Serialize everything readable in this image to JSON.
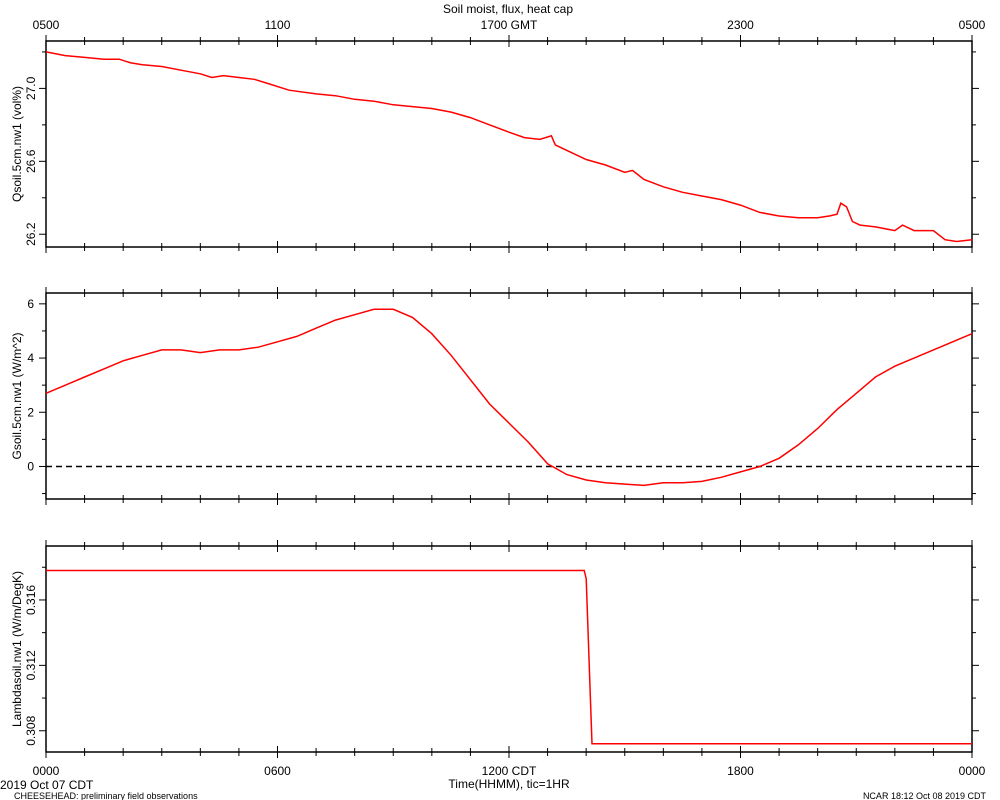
{
  "chart_data": {
    "title": "Soil moist, flux, heat cap",
    "top_axis_ticks": [
      "0500",
      "1100",
      "1700 GMT",
      "2300",
      "0500"
    ],
    "bottom_axis_ticks": [
      "0000",
      "0600",
      "1200 CDT",
      "1800",
      "0000"
    ],
    "xlabel": "Time(HHMM), tic=1HR",
    "xlim_hours": [
      0,
      24
    ],
    "start_date": "2019 Oct 07 CDT",
    "footer_left": "CHEESEHEAD: preliminary field observations",
    "footer_right": "NCAR 18:12 Oct 08 2019 CDT",
    "line_color": "#ff0000",
    "panels": [
      {
        "type": "line",
        "ylabel": "Qsoil.5cm.nw1  (vol%)",
        "ylim": [
          26.13,
          27.26
        ],
        "yticks": [
          26.2,
          26.6,
          27.0
        ],
        "ytick_labels": [
          "26.2",
          "26.6",
          "27.0"
        ],
        "tick_rotate": true,
        "x": [
          0,
          0.5,
          1,
          1.5,
          1.9,
          2.2,
          2.5,
          3,
          3.5,
          4,
          4.3,
          4.6,
          5,
          5.4,
          5.7,
          6.3,
          7,
          7.5,
          8,
          8.5,
          9,
          9.5,
          10,
          10.5,
          11,
          11.5,
          12,
          12.4,
          12.8,
          13.1,
          13.2,
          13.5,
          14,
          14.5,
          15,
          15.2,
          15.5,
          16,
          16.5,
          17,
          17.5,
          18,
          18.5,
          19,
          19.5,
          20,
          20.3,
          20.5,
          20.6,
          20.75,
          20.9,
          21.1,
          21.5,
          22,
          22.2,
          22.5,
          23,
          23.3,
          23.6,
          24
        ],
        "y": [
          27.2,
          27.18,
          27.17,
          27.16,
          27.16,
          27.14,
          27.13,
          27.12,
          27.1,
          27.08,
          27.06,
          27.07,
          27.06,
          27.05,
          27.03,
          26.99,
          26.97,
          26.96,
          26.94,
          26.93,
          26.91,
          26.9,
          26.89,
          26.87,
          26.84,
          26.8,
          26.76,
          26.73,
          26.72,
          26.74,
          26.69,
          26.66,
          26.61,
          26.58,
          26.54,
          26.55,
          26.5,
          26.46,
          26.43,
          26.41,
          26.39,
          26.36,
          26.32,
          26.3,
          26.29,
          26.29,
          26.3,
          26.31,
          26.37,
          26.35,
          26.27,
          26.25,
          26.24,
          26.22,
          26.25,
          26.22,
          26.22,
          26.17,
          26.16,
          26.17
        ]
      },
      {
        "type": "line",
        "ylabel": "Gsoil.5cm.nw1  (W/m^2)",
        "ylim": [
          -1.2,
          6.4
        ],
        "yticks": [
          0,
          2,
          4,
          6
        ],
        "ytick_labels": [
          "0",
          "2",
          "4",
          "6"
        ],
        "tick_rotate": false,
        "zero_line": true,
        "x": [
          0,
          0.5,
          1,
          1.5,
          2,
          2.5,
          3,
          3.5,
          4,
          4.5,
          5,
          5.5,
          6,
          6.5,
          7,
          7.5,
          8,
          8.5,
          9,
          9.5,
          10,
          10.5,
          11,
          11.5,
          12,
          12.5,
          13,
          13.5,
          14,
          14.5,
          15,
          15.5,
          16,
          16.5,
          17,
          17.5,
          18,
          18.5,
          19,
          19.5,
          20,
          20.5,
          21,
          21.5,
          22,
          22.5,
          23,
          23.5,
          24
        ],
        "y": [
          2.7,
          3.0,
          3.3,
          3.6,
          3.9,
          4.1,
          4.3,
          4.3,
          4.2,
          4.3,
          4.3,
          4.4,
          4.6,
          4.8,
          5.1,
          5.4,
          5.6,
          5.8,
          5.8,
          5.5,
          4.9,
          4.1,
          3.2,
          2.3,
          1.6,
          0.9,
          0.1,
          -0.3,
          -0.5,
          -0.6,
          -0.65,
          -0.7,
          -0.6,
          -0.6,
          -0.55,
          -0.4,
          -0.2,
          0.0,
          0.3,
          0.8,
          1.4,
          2.1,
          2.7,
          3.3,
          3.7,
          4.0,
          4.3,
          4.6,
          4.9
        ]
      },
      {
        "type": "line",
        "ylabel": "Lambdasoil.nw1  (W/m/DegK)",
        "ylim": [
          0.3067,
          0.3193
        ],
        "yticks": [
          0.308,
          0.312,
          0.316
        ],
        "ytick_labels": [
          "0.308",
          "0.312",
          "0.316"
        ],
        "tick_rotate": true,
        "x": [
          0,
          13.95,
          14.0,
          14.15,
          24
        ],
        "y": [
          0.3178,
          0.3178,
          0.3173,
          0.3072,
          0.3072
        ]
      }
    ]
  }
}
